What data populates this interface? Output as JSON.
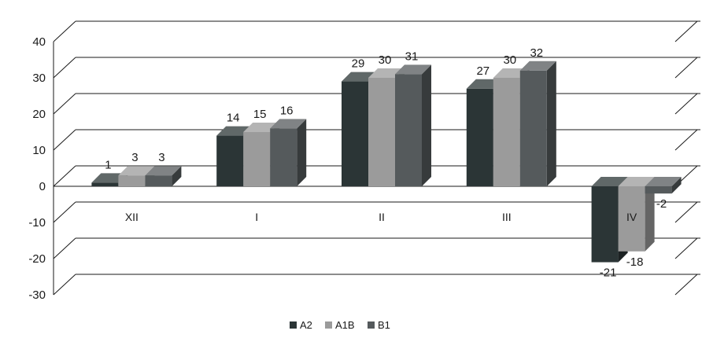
{
  "chart_data": {
    "type": "bar",
    "categories": [
      "XII",
      "I",
      "II",
      "III",
      "IV"
    ],
    "series": [
      {
        "name": "A2",
        "values": [
          1,
          14,
          29,
          27,
          -21
        ],
        "color": "#2b3536"
      },
      {
        "name": "A1B",
        "values": [
          3,
          15,
          30,
          30,
          -18
        ],
        "color": "#9b9b9b"
      },
      {
        "name": "B1",
        "values": [
          3,
          16,
          31,
          32,
          -2
        ],
        "color": "#555a5c"
      }
    ],
    "ylim": [
      -30,
      40
    ],
    "yticks": [
      40,
      30,
      20,
      10,
      0,
      -10,
      -20,
      -30
    ],
    "grid": true,
    "legend_position": "bottom",
    "style": "3d-clustered-column"
  }
}
